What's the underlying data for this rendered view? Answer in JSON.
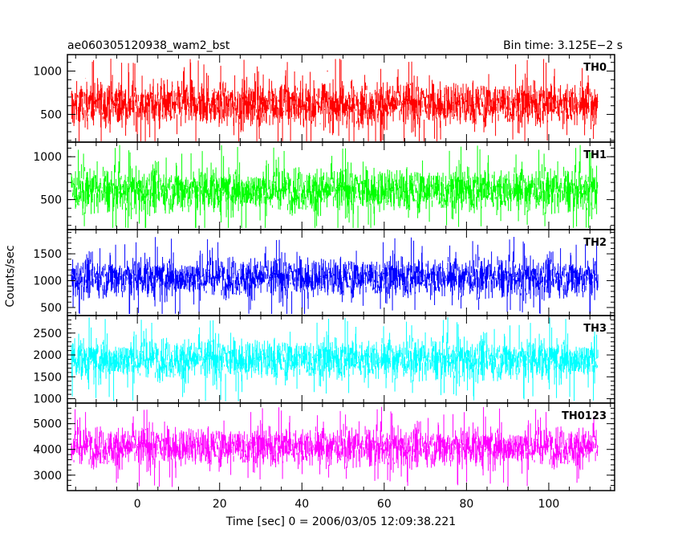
{
  "chart_data": {
    "type": "line",
    "title": "ae060305120938_wam2_bst",
    "subtitle": "Bin time: 3.125E−2 s",
    "xlabel": "Time [sec] 0 = 2006/03/05 12:09:38.221",
    "ylabel": "Counts/sec",
    "xlim": [
      -17,
      116
    ],
    "data_range": [
      -16,
      112
    ],
    "xticks": [
      0,
      20,
      40,
      60,
      80,
      100
    ],
    "grid": false,
    "panels": [
      {
        "name": "TH0",
        "color": "#ff0000",
        "ylim": [
          180,
          1190
        ],
        "yticks": [
          500,
          1000
        ],
        "mean": 620,
        "spread": 230,
        "min": 190,
        "max": 1180
      },
      {
        "name": "TH1",
        "color": "#00ff00",
        "ylim": [
          150,
          1170
        ],
        "yticks": [
          500,
          1000
        ],
        "mean": 610,
        "spread": 230,
        "min": 170,
        "max": 1160
      },
      {
        "name": "TH2",
        "color": "#0000ff",
        "ylim": [
          350,
          1950
        ],
        "yticks": [
          500,
          1000,
          1500
        ],
        "mean": 1060,
        "spread": 330,
        "min": 380,
        "max": 1920
      },
      {
        "name": "TH3",
        "color": "#00ffff",
        "ylim": [
          900,
          2900
        ],
        "yticks": [
          1000,
          1500,
          2000,
          2500
        ],
        "mean": 1900,
        "spread": 420,
        "min": 940,
        "max": 2870
      },
      {
        "name": "TH0123",
        "color": "#ff00ff",
        "ylim": [
          2400,
          5800
        ],
        "yticks": [
          3000,
          4000,
          5000
        ],
        "mean": 4100,
        "spread": 680,
        "min": 2500,
        "max": 5650
      }
    ]
  }
}
